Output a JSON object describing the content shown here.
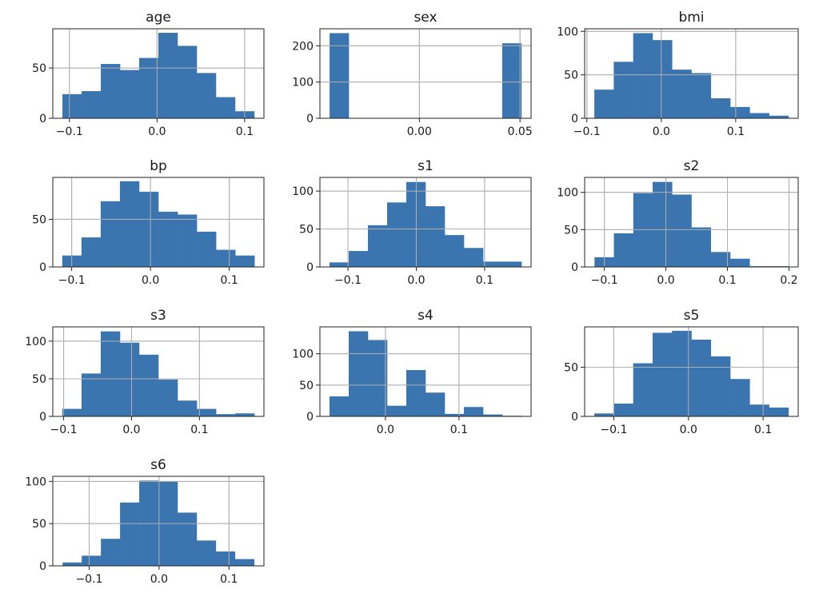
{
  "chart_data": [
    {
      "type": "bar",
      "title": "age",
      "bin_range": [
        -0.108,
        0.111
      ],
      "values": [
        24,
        27,
        54,
        48,
        60,
        85,
        72,
        45,
        21,
        7
      ],
      "xlim": [
        -0.119,
        0.122
      ],
      "ylim": [
        0,
        89
      ],
      "xticks": [
        -0.1,
        0.0,
        0.1
      ],
      "xtick_labels": [
        "−0.1",
        "0.0",
        "0.1"
      ],
      "yticks": [
        0,
        50
      ],
      "ytick_labels": [
        "0",
        "50"
      ],
      "grid": true,
      "color": "#3b75af"
    },
    {
      "type": "bar",
      "title": "sex",
      "bin_range": [
        -0.0446,
        0.0507
      ],
      "values": [
        235,
        0,
        0,
        0,
        0,
        0,
        0,
        0,
        0,
        207
      ],
      "xlim": [
        -0.0494,
        0.0555
      ],
      "ylim": [
        0,
        247
      ],
      "xticks": [
        0.0,
        0.05
      ],
      "xtick_labels": [
        "0.00",
        "0.05"
      ],
      "yticks": [
        0,
        100,
        200
      ],
      "ytick_labels": [
        "0",
        "100",
        "200"
      ],
      "grid": true,
      "color": "#3b75af"
    },
    {
      "type": "bar",
      "title": "bmi",
      "bin_range": [
        -0.09,
        0.171
      ],
      "values": [
        33,
        65,
        98,
        90,
        56,
        52,
        23,
        13,
        6,
        3
      ],
      "xlim": [
        -0.103,
        0.184
      ],
      "ylim": [
        0,
        103
      ],
      "xticks": [
        -0.1,
        0.0,
        0.1
      ],
      "xtick_labels": [
        "−0.1",
        "0.0",
        "0.1"
      ],
      "yticks": [
        0,
        50,
        100
      ],
      "ytick_labels": [
        "0",
        "50",
        "100"
      ],
      "grid": true,
      "color": "#3b75af"
    },
    {
      "type": "bar",
      "title": "bp",
      "bin_range": [
        -0.112,
        0.132
      ],
      "values": [
        12,
        31,
        69,
        90,
        79,
        58,
        55,
        37,
        18,
        12
      ],
      "xlim": [
        -0.124,
        0.144
      ],
      "ylim": [
        0,
        94
      ],
      "xticks": [
        -0.1,
        0.0,
        0.1
      ],
      "xtick_labels": [
        "−0.1",
        "0.0",
        "0.1"
      ],
      "yticks": [
        0,
        50
      ],
      "ytick_labels": [
        "0",
        "50"
      ],
      "grid": true,
      "color": "#3b75af"
    },
    {
      "type": "bar",
      "title": "s1",
      "bin_range": [
        -0.127,
        0.154
      ],
      "values": [
        6,
        21,
        55,
        85,
        112,
        80,
        42,
        25,
        7,
        7
      ],
      "xlim": [
        -0.141,
        0.168
      ],
      "ylim": [
        0,
        118
      ],
      "xticks": [
        -0.1,
        0.0,
        0.1
      ],
      "xtick_labels": [
        "−0.1",
        "0.0",
        "0.1"
      ],
      "yticks": [
        0,
        50,
        100
      ],
      "ytick_labels": [
        "0",
        "50",
        "100"
      ],
      "grid": true,
      "color": "#3b75af"
    },
    {
      "type": "bar",
      "title": "s2",
      "bin_range": [
        -0.116,
        0.199
      ],
      "values": [
        13,
        45,
        99,
        114,
        97,
        53,
        20,
        11,
        1,
        1
      ],
      "xlim": [
        -0.132,
        0.215
      ],
      "ylim": [
        0,
        120
      ],
      "xticks": [
        -0.1,
        0.0,
        0.1,
        0.2
      ],
      "xtick_labels": [
        "−0.1",
        "0.0",
        "0.1",
        "0.2"
      ],
      "yticks": [
        0,
        50,
        100
      ],
      "ytick_labels": [
        "0",
        "50",
        "100"
      ],
      "grid": true,
      "color": "#3b75af"
    },
    {
      "type": "bar",
      "title": "s3",
      "bin_range": [
        -0.102,
        0.181
      ],
      "values": [
        10,
        57,
        113,
        98,
        82,
        49,
        21,
        10,
        3,
        4
      ],
      "xlim": [
        -0.116,
        0.195
      ],
      "ylim": [
        0,
        119
      ],
      "xticks": [
        -0.1,
        0.0,
        0.1
      ],
      "xtick_labels": [
        "−0.1",
        "0.0",
        "0.1"
      ],
      "yticks": [
        0,
        50,
        100
      ],
      "ytick_labels": [
        "0",
        "50",
        "100"
      ],
      "grid": true,
      "color": "#3b75af"
    },
    {
      "type": "bar",
      "title": "s4",
      "bin_range": [
        -0.076,
        0.185
      ],
      "values": [
        32,
        136,
        122,
        17,
        74,
        38,
        4,
        15,
        3,
        1
      ],
      "xlim": [
        -0.089,
        0.198
      ],
      "ylim": [
        0,
        143
      ],
      "xticks": [
        0.0,
        0.1
      ],
      "xtick_labels": [
        "0.0",
        "0.1"
      ],
      "yticks": [
        0,
        50,
        100
      ],
      "ytick_labels": [
        "0",
        "50",
        "100"
      ],
      "grid": true,
      "color": "#3b75af"
    },
    {
      "type": "bar",
      "title": "s5",
      "bin_range": [
        -0.126,
        0.134
      ],
      "values": [
        3,
        13,
        54,
        85,
        87,
        78,
        61,
        38,
        12,
        9
      ],
      "xlim": [
        -0.139,
        0.147
      ],
      "ylim": [
        0,
        91
      ],
      "xticks": [
        -0.1,
        0.0,
        0.1
      ],
      "xtick_labels": [
        "−0.1",
        "0.0",
        "0.1"
      ],
      "yticks": [
        0,
        50
      ],
      "ytick_labels": [
        "0",
        "50"
      ],
      "grid": true,
      "color": "#3b75af"
    },
    {
      "type": "bar",
      "title": "s6",
      "bin_range": [
        -0.138,
        0.136
      ],
      "values": [
        4,
        12,
        32,
        75,
        101,
        100,
        63,
        30,
        17,
        8
      ],
      "xlim": [
        -0.152,
        0.15
      ],
      "ylim": [
        0,
        106
      ],
      "xticks": [
        -0.1,
        0.0,
        0.1
      ],
      "xtick_labels": [
        "−0.1",
        "0.0",
        "0.1"
      ],
      "yticks": [
        0,
        50,
        100
      ],
      "ytick_labels": [
        "0",
        "50",
        "100"
      ],
      "grid": true,
      "color": "#3b75af"
    }
  ]
}
